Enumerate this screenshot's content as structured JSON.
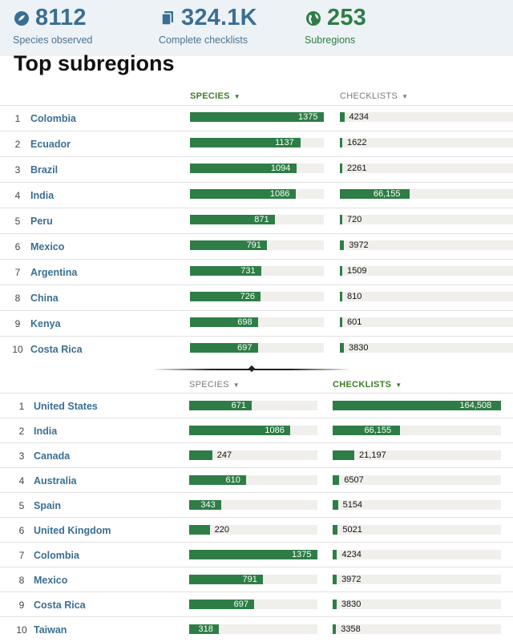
{
  "stats": [
    {
      "icon": "species-icon",
      "value": "8112",
      "label": "Species observed"
    },
    {
      "icon": "checklist-icon",
      "value": "324.1K",
      "label": "Complete checklists"
    },
    {
      "icon": "globe-icon",
      "value": "253",
      "label": "Subregions"
    }
  ],
  "title": "Top subregions",
  "colors": {
    "bar": "#2e7d46",
    "track": "#f1efec",
    "active_header": "#3e7c2a",
    "link": "#3a6f93"
  },
  "scales": {
    "species_max": 1375,
    "checklists_max": 164508
  },
  "species_table": {
    "species_header": "SPECIES",
    "checklists_header": "CHECKLISTS",
    "sorted_by": "species",
    "rows": [
      {
        "rank": "1",
        "name": "Colombia",
        "species": 1375,
        "species_text": "1375",
        "checklists": 4234,
        "checklists_text": "4234"
      },
      {
        "rank": "2",
        "name": "Ecuador",
        "species": 1137,
        "species_text": "1137",
        "checklists": 1622,
        "checklists_text": "1622"
      },
      {
        "rank": "3",
        "name": "Brazil",
        "species": 1094,
        "species_text": "1094",
        "checklists": 2261,
        "checklists_text": "2261"
      },
      {
        "rank": "4",
        "name": "India",
        "species": 1086,
        "species_text": "1086",
        "checklists": 66155,
        "checklists_text": "66,155"
      },
      {
        "rank": "5",
        "name": "Peru",
        "species": 871,
        "species_text": "871",
        "checklists": 720,
        "checklists_text": "720"
      },
      {
        "rank": "6",
        "name": "Mexico",
        "species": 791,
        "species_text": "791",
        "checklists": 3972,
        "checklists_text": "3972"
      },
      {
        "rank": "7",
        "name": "Argentina",
        "species": 731,
        "species_text": "731",
        "checklists": 1509,
        "checklists_text": "1509"
      },
      {
        "rank": "8",
        "name": "China",
        "species": 726,
        "species_text": "726",
        "checklists": 810,
        "checklists_text": "810"
      },
      {
        "rank": "9",
        "name": "Kenya",
        "species": 698,
        "species_text": "698",
        "checklists": 601,
        "checklists_text": "601"
      },
      {
        "rank": "10",
        "name": "Costa Rica",
        "species": 697,
        "species_text": "697",
        "checklists": 3830,
        "checklists_text": "3830"
      }
    ]
  },
  "checklists_table": {
    "species_header": "SPECIES",
    "checklists_header": "CHECKLISTS",
    "sorted_by": "checklists",
    "rows": [
      {
        "rank": "1",
        "name": "United States",
        "species": 671,
        "species_text": "671",
        "checklists": 164508,
        "checklists_text": "164,508"
      },
      {
        "rank": "2",
        "name": "India",
        "species": 1086,
        "species_text": "1086",
        "checklists": 66155,
        "checklists_text": "66,155"
      },
      {
        "rank": "3",
        "name": "Canada",
        "species": 247,
        "species_text": "247",
        "checklists": 21197,
        "checklists_text": "21,197"
      },
      {
        "rank": "4",
        "name": "Australia",
        "species": 610,
        "species_text": "610",
        "checklists": 6507,
        "checklists_text": "6507"
      },
      {
        "rank": "5",
        "name": "Spain",
        "species": 343,
        "species_text": "343",
        "checklists": 5154,
        "checklists_text": "5154"
      },
      {
        "rank": "6",
        "name": "United Kingdom",
        "species": 220,
        "species_text": "220",
        "checklists": 5021,
        "checklists_text": "5021"
      },
      {
        "rank": "7",
        "name": "Colombia",
        "species": 1375,
        "species_text": "1375",
        "checklists": 4234,
        "checklists_text": "4234"
      },
      {
        "rank": "8",
        "name": "Mexico",
        "species": 791,
        "species_text": "791",
        "checklists": 3972,
        "checklists_text": "3972"
      },
      {
        "rank": "9",
        "name": "Costa Rica",
        "species": 697,
        "species_text": "697",
        "checklists": 3830,
        "checklists_text": "3830"
      },
      {
        "rank": "10",
        "name": "Taiwan",
        "species": 318,
        "species_text": "318",
        "checklists": 3358,
        "checklists_text": "3358"
      }
    ]
  }
}
